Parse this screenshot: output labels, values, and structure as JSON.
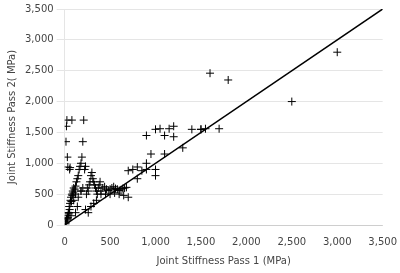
{
  "chart_data": {
    "type": "scatter",
    "xlabel": "Joint Stiffness Pass 1 (MPa)",
    "ylabel": "Joint Stiffness Pass 2( MPa)",
    "xlim": [
      0,
      3500
    ],
    "ylim": [
      0,
      3500
    ],
    "xticks": [
      0,
      500,
      1000,
      1500,
      2000,
      2500,
      3000,
      3500
    ],
    "yticks": [
      0,
      500,
      1000,
      1500,
      2000,
      2500,
      3000,
      3500
    ],
    "grid": "y",
    "series": [
      {
        "type": "scatter",
        "marker": "+",
        "color": "#000000",
        "x": [
          10,
          15,
          20,
          25,
          30,
          35,
          40,
          45,
          50,
          55,
          60,
          65,
          70,
          75,
          80,
          85,
          90,
          95,
          100,
          110,
          120,
          130,
          140,
          150,
          160,
          170,
          180,
          190,
          200,
          210,
          220,
          230,
          240,
          250,
          260,
          270,
          280,
          290,
          300,
          310,
          320,
          330,
          340,
          350,
          360,
          370,
          380,
          390,
          400,
          420,
          440,
          460,
          480,
          500,
          520,
          540,
          560,
          580,
          600,
          620,
          640,
          660,
          680,
          700,
          750,
          800,
          850,
          900,
          950,
          1000,
          1050,
          1100,
          1150,
          1200,
          1300,
          1400,
          1500,
          1550,
          1600,
          1700,
          1800,
          2500,
          3000,
          30,
          50,
          70,
          100,
          120,
          150,
          180,
          200,
          230,
          260,
          290,
          320,
          350,
          400,
          450,
          500,
          550,
          600,
          650,
          700,
          800,
          900,
          1000,
          1100,
          1200,
          1500,
          15,
          20,
          25,
          30,
          35,
          55,
          60,
          80,
          120,
          140,
          180,
          900,
          1000
        ],
        "values": [
          20,
          50,
          100,
          80,
          150,
          120,
          200,
          180,
          300,
          250,
          350,
          400,
          450,
          380,
          500,
          480,
          550,
          520,
          600,
          580,
          630,
          700,
          750,
          800,
          900,
          950,
          1000,
          1100,
          1350,
          1700,
          900,
          950,
          500,
          600,
          550,
          650,
          700,
          800,
          850,
          750,
          700,
          650,
          600,
          550,
          500,
          600,
          650,
          700,
          550,
          600,
          620,
          580,
          560,
          580,
          600,
          620,
          590,
          580,
          560,
          570,
          590,
          600,
          610,
          880,
          900,
          940,
          880,
          1000,
          1150,
          1550,
          1560,
          1450,
          1560,
          1600,
          1250,
          1550,
          1550,
          1560,
          2460,
          1560,
          2350,
          2000,
          2800,
          100,
          200,
          150,
          400,
          500,
          450,
          550,
          600,
          250,
          200,
          300,
          350,
          400,
          500,
          500,
          500,
          520,
          500,
          480,
          450,
          750,
          900,
          800,
          1150,
          1430,
          1550,
          1350,
          1600,
          1700,
          1100,
          940,
          900,
          930,
          1700,
          200,
          300,
          550,
          1450,
          900
        ]
      },
      {
        "type": "line",
        "line_style": "solid",
        "color": "#000000",
        "x": [
          0,
          3500
        ],
        "values": [
          0,
          3500
        ]
      }
    ]
  }
}
